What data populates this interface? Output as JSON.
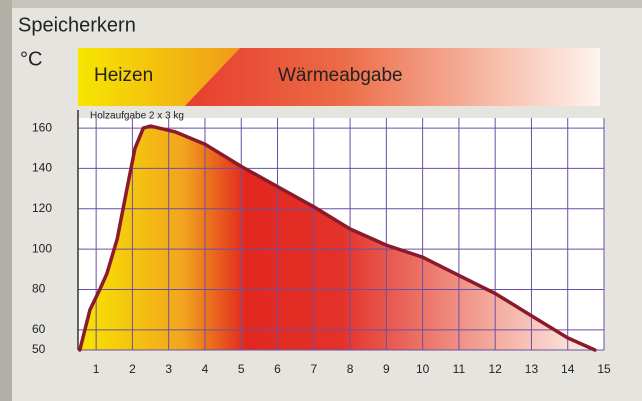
{
  "chart_data": {
    "type": "area",
    "title": "Speicherkern",
    "y_label": "°C",
    "phases": [
      "Heizen",
      "Wärmeabgabe"
    ],
    "annotation": "Holzaufgabe 2 x 3 kg",
    "x": [
      0.55,
      0.83,
      1.1,
      1.3,
      1.58,
      1.85,
      2.07,
      2.3,
      2.5,
      3.2,
      4,
      5,
      6,
      7,
      8,
      9,
      10,
      11,
      12,
      13,
      14,
      14.75
    ],
    "values": [
      50,
      70,
      80,
      88,
      105,
      130,
      150,
      160,
      161,
      158,
      152,
      141,
      131,
      121,
      110,
      102,
      96,
      87,
      78,
      67,
      56,
      50
    ],
    "color": "#8b1a2a",
    "grid_color": "#6b4fa3",
    "xlim": [
      0.5,
      15
    ],
    "xticks": [
      1,
      2,
      3,
      4,
      5,
      6,
      7,
      8,
      9,
      10,
      11,
      12,
      13,
      14,
      15
    ],
    "ylim": [
      50,
      165
    ],
    "yticks": [
      50,
      60,
      80,
      100,
      120,
      140,
      160
    ],
    "grid": true
  }
}
